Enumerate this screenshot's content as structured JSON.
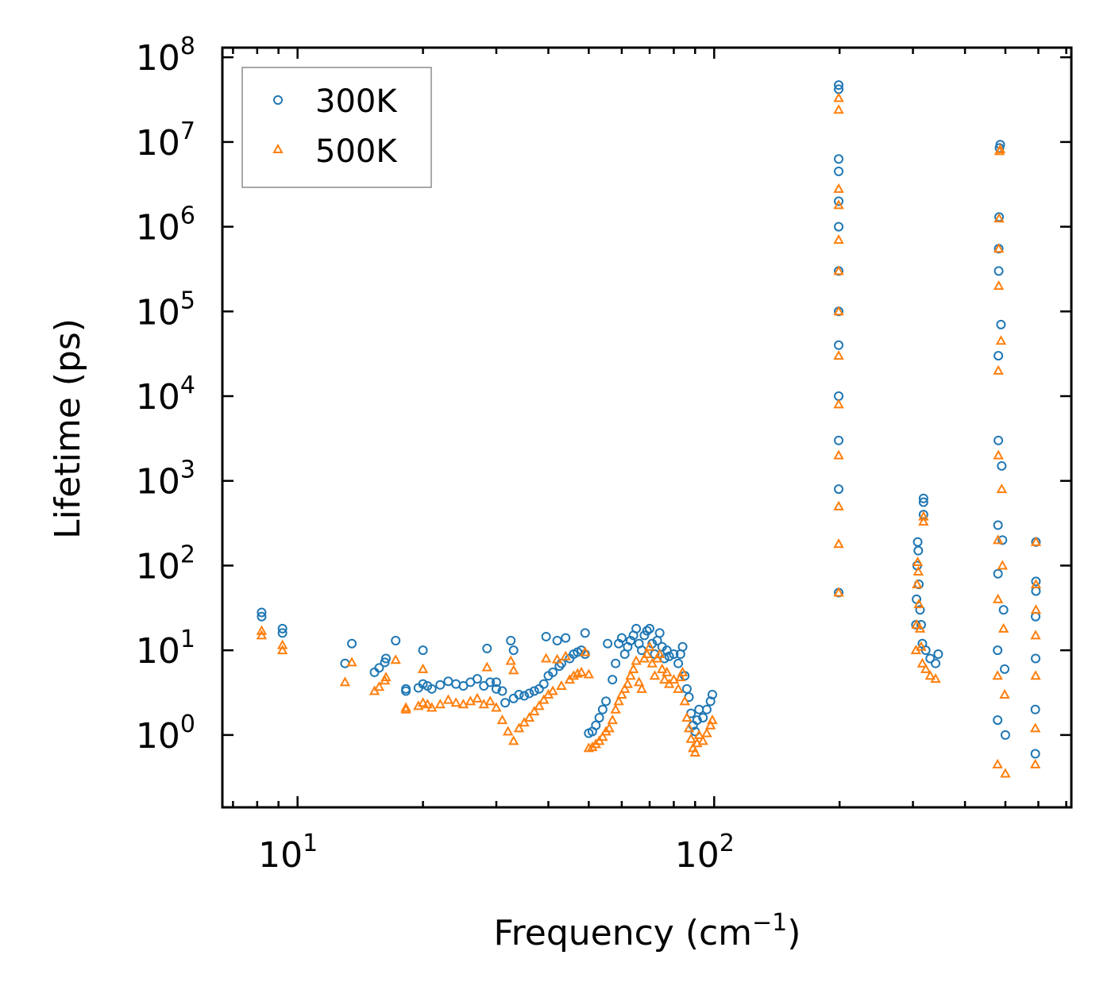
{
  "chart_data": {
    "type": "scatter",
    "title": "",
    "xlabel": "Frequency (cm",
    "xlabel_sup": "−1",
    "xlabel_close": ")",
    "ylabel": "Lifetime (ps)",
    "xscale": "log",
    "yscale": "log",
    "xlim": [
      6.6,
      720
    ],
    "ylim": [
      0.14,
      130000000
    ],
    "legend_position": "top-left",
    "x_ticks": [
      {
        "value": 10,
        "base": "10",
        "exp": "1"
      },
      {
        "value": 100,
        "base": "10",
        "exp": "2"
      }
    ],
    "y_ticks": [
      {
        "value": 1,
        "base": "10",
        "exp": "0"
      },
      {
        "value": 10,
        "base": "10",
        "exp": "1"
      },
      {
        "value": 100,
        "base": "10",
        "exp": "2"
      },
      {
        "value": 1000,
        "base": "10",
        "exp": "3"
      },
      {
        "value": 10000,
        "base": "10",
        "exp": "4"
      },
      {
        "value": 100000,
        "base": "10",
        "exp": "5"
      },
      {
        "value": 1000000,
        "base": "10",
        "exp": "6"
      },
      {
        "value": 10000000,
        "base": "10",
        "exp": "7"
      },
      {
        "value": 100000000,
        "base": "10",
        "exp": "8"
      }
    ],
    "series": [
      {
        "name": "300K",
        "marker": "circle",
        "color": "#1f77b4",
        "points": [
          [
            8.2,
            28
          ],
          [
            8.2,
            25
          ],
          [
            9.2,
            18
          ],
          [
            9.2,
            16
          ],
          [
            13,
            7
          ],
          [
            13.5,
            12
          ],
          [
            15.3,
            5.5
          ],
          [
            15.7,
            6.2
          ],
          [
            16.2,
            7.2
          ],
          [
            16.3,
            8
          ],
          [
            17.2,
            13
          ],
          [
            18.2,
            3.5
          ],
          [
            18.2,
            3.3
          ],
          [
            19.5,
            3.6
          ],
          [
            20,
            4
          ],
          [
            20,
            10
          ],
          [
            20.5,
            3.8
          ],
          [
            21,
            3.5
          ],
          [
            22,
            3.9
          ],
          [
            23,
            4.3
          ],
          [
            24,
            4
          ],
          [
            25,
            3.8
          ],
          [
            26,
            4.2
          ],
          [
            27,
            4.6
          ],
          [
            28,
            3.8
          ],
          [
            28.5,
            10.5
          ],
          [
            29,
            4.2
          ],
          [
            30,
            3.5
          ],
          [
            30,
            4.2
          ],
          [
            31,
            3.3
          ],
          [
            31.5,
            2.4
          ],
          [
            32.5,
            13
          ],
          [
            33,
            10
          ],
          [
            33,
            2.7
          ],
          [
            34,
            3
          ],
          [
            35,
            2.9
          ],
          [
            36,
            3.1
          ],
          [
            37,
            3.3
          ],
          [
            38,
            3.5
          ],
          [
            39,
            4
          ],
          [
            39.5,
            14.5
          ],
          [
            40,
            5
          ],
          [
            41,
            5.5
          ],
          [
            42,
            13
          ],
          [
            42.5,
            6.5
          ],
          [
            43,
            7
          ],
          [
            44,
            14
          ],
          [
            45,
            8
          ],
          [
            46,
            9
          ],
          [
            47,
            9.5
          ],
          [
            48,
            10
          ],
          [
            49,
            16
          ],
          [
            49,
            9
          ],
          [
            50,
            1.05
          ],
          [
            51,
            1.1
          ],
          [
            52,
            1.3
          ],
          [
            53,
            1.6
          ],
          [
            54,
            2
          ],
          [
            55,
            2.5
          ],
          [
            55.5,
            12
          ],
          [
            57,
            4.5
          ],
          [
            58,
            7
          ],
          [
            59,
            12
          ],
          [
            60,
            14
          ],
          [
            61,
            9
          ],
          [
            62,
            11
          ],
          [
            63,
            13
          ],
          [
            64,
            15
          ],
          [
            65,
            18
          ],
          [
            66,
            12
          ],
          [
            67,
            10
          ],
          [
            68,
            15
          ],
          [
            69,
            17
          ],
          [
            70,
            18
          ],
          [
            71,
            12
          ],
          [
            72,
            9
          ],
          [
            73,
            13
          ],
          [
            74,
            16
          ],
          [
            75,
            11
          ],
          [
            76,
            8
          ],
          [
            77,
            10
          ],
          [
            78,
            8.5
          ],
          [
            80,
            9
          ],
          [
            82,
            7
          ],
          [
            83,
            9
          ],
          [
            84,
            11
          ],
          [
            85,
            5
          ],
          [
            86,
            3.5
          ],
          [
            87,
            2.8
          ],
          [
            88,
            1.8
          ],
          [
            89,
            1.3
          ],
          [
            90,
            1.1
          ],
          [
            91,
            1.5
          ],
          [
            92,
            2
          ],
          [
            94,
            1.6
          ],
          [
            96,
            2
          ],
          [
            98,
            2.5
          ],
          [
            99,
            3
          ],
          [
            199,
            48
          ],
          [
            199,
            800
          ],
          [
            199,
            3000
          ],
          [
            199,
            10000
          ],
          [
            199,
            40000
          ],
          [
            199,
            100000
          ],
          [
            199,
            300000
          ],
          [
            199,
            1000000
          ],
          [
            199,
            2000000
          ],
          [
            199,
            4500000
          ],
          [
            199,
            6300000
          ],
          [
            199,
            42000000
          ],
          [
            199,
            47000000
          ],
          [
            305,
            20
          ],
          [
            306,
            40
          ],
          [
            307,
            100
          ],
          [
            308,
            190
          ],
          [
            309,
            150
          ],
          [
            310,
            60
          ],
          [
            312,
            30
          ],
          [
            314,
            20
          ],
          [
            316,
            12
          ],
          [
            318,
            620
          ],
          [
            318,
            560
          ],
          [
            318,
            400
          ],
          [
            322,
            10
          ],
          [
            330,
            8
          ],
          [
            340,
            7
          ],
          [
            345,
            9
          ],
          [
            479,
            1.5
          ],
          [
            479,
            10
          ],
          [
            480,
            80
          ],
          [
            480,
            300
          ],
          [
            481,
            3000
          ],
          [
            481,
            30000
          ],
          [
            482,
            300000
          ],
          [
            482,
            550000
          ],
          [
            483,
            1300000
          ],
          [
            484,
            8500000
          ],
          [
            486,
            9300000
          ],
          [
            488,
            70000
          ],
          [
            490,
            1500
          ],
          [
            492,
            200
          ],
          [
            495,
            30
          ],
          [
            498,
            6
          ],
          [
            500,
            1
          ],
          [
            590,
            0.6
          ],
          [
            590,
            2
          ],
          [
            591,
            8
          ],
          [
            591,
            25
          ],
          [
            592,
            50
          ],
          [
            592,
            65
          ],
          [
            592,
            190
          ]
        ]
      },
      {
        "name": "500K",
        "marker": "triangle",
        "color": "#ff7f0e",
        "points": [
          [
            8.2,
            17
          ],
          [
            8.2,
            15
          ],
          [
            9.2,
            11.5
          ],
          [
            9.2,
            10
          ],
          [
            13,
            4.2
          ],
          [
            13.5,
            7.2
          ],
          [
            15.3,
            3.3
          ],
          [
            15.7,
            3.7
          ],
          [
            16.2,
            4.4
          ],
          [
            16.3,
            4.8
          ],
          [
            17.2,
            7.7
          ],
          [
            18.2,
            2.1
          ],
          [
            18.2,
            2
          ],
          [
            19.5,
            2.2
          ],
          [
            20,
            2.4
          ],
          [
            20,
            6
          ],
          [
            20.5,
            2.3
          ],
          [
            21,
            2.1
          ],
          [
            22,
            2.3
          ],
          [
            23,
            2.6
          ],
          [
            24,
            2.4
          ],
          [
            25,
            2.3
          ],
          [
            26,
            2.5
          ],
          [
            27,
            2.7
          ],
          [
            28,
            2.3
          ],
          [
            28.5,
            6.3
          ],
          [
            29,
            2.5
          ],
          [
            30,
            2.1
          ],
          [
            31,
            1.5
          ],
          [
            32,
            1.1
          ],
          [
            32.5,
            7.5
          ],
          [
            33,
            5.8
          ],
          [
            33,
            0.85
          ],
          [
            34,
            1.2
          ],
          [
            35,
            1.4
          ],
          [
            36,
            1.6
          ],
          [
            37,
            1.9
          ],
          [
            38,
            2.2
          ],
          [
            39,
            2.6
          ],
          [
            39.5,
            8
          ],
          [
            40,
            3
          ],
          [
            41,
            3.3
          ],
          [
            42,
            7.8
          ],
          [
            43,
            3.8
          ],
          [
            44,
            8.5
          ],
          [
            45,
            4.5
          ],
          [
            46,
            5
          ],
          [
            47,
            5.3
          ],
          [
            48,
            5.5
          ],
          [
            49,
            9.5
          ],
          [
            50,
            5.2
          ],
          [
            50,
            0.7
          ],
          [
            51,
            0.72
          ],
          [
            52,
            0.78
          ],
          [
            53,
            0.85
          ],
          [
            54,
            0.95
          ],
          [
            55,
            1.1
          ],
          [
            56,
            1.2
          ],
          [
            57,
            1.5
          ],
          [
            58,
            2
          ],
          [
            59,
            2.5
          ],
          [
            60,
            3
          ],
          [
            61,
            3.5
          ],
          [
            62,
            4
          ],
          [
            63,
            5
          ],
          [
            64,
            6
          ],
          [
            65,
            7.5
          ],
          [
            66,
            4.2
          ],
          [
            67,
            3.5
          ],
          [
            68,
            8
          ],
          [
            69,
            9
          ],
          [
            70,
            11
          ],
          [
            71,
            7
          ],
          [
            72,
            5
          ],
          [
            73,
            8
          ],
          [
            74,
            9
          ],
          [
            75,
            6
          ],
          [
            76,
            4.5
          ],
          [
            77,
            5.5
          ],
          [
            78,
            4
          ],
          [
            80,
            4.5
          ],
          [
            82,
            3.5
          ],
          [
            83,
            4.8
          ],
          [
            84,
            5.5
          ],
          [
            85,
            2.5
          ],
          [
            86,
            1.6
          ],
          [
            87,
            1.2
          ],
          [
            88,
            0.9
          ],
          [
            89,
            0.7
          ],
          [
            90,
            0.62
          ],
          [
            91,
            0.8
          ],
          [
            92,
            1
          ],
          [
            94,
            0.85
          ],
          [
            96,
            1.05
          ],
          [
            98,
            1.3
          ],
          [
            99,
            1.5
          ],
          [
            199,
            48
          ],
          [
            199,
            180
          ],
          [
            199,
            500
          ],
          [
            199,
            2000
          ],
          [
            199,
            8000
          ],
          [
            199,
            30000
          ],
          [
            199,
            100000
          ],
          [
            199,
            300000
          ],
          [
            199,
            700000
          ],
          [
            199,
            1800000
          ],
          [
            199,
            2800000
          ],
          [
            199,
            24000000
          ],
          [
            199,
            33000000
          ],
          [
            305,
            10
          ],
          [
            306,
            20
          ],
          [
            307,
            60
          ],
          [
            308,
            110
          ],
          [
            309,
            85
          ],
          [
            310,
            35
          ],
          [
            312,
            18
          ],
          [
            314,
            11
          ],
          [
            316,
            7
          ],
          [
            318,
            380
          ],
          [
            318,
            330
          ],
          [
            322,
            6
          ],
          [
            330,
            5
          ],
          [
            340,
            4.6
          ],
          [
            479,
            0.45
          ],
          [
            479,
            5
          ],
          [
            480,
            40
          ],
          [
            480,
            200
          ],
          [
            481,
            2000
          ],
          [
            481,
            20000
          ],
          [
            482,
            200000
          ],
          [
            482,
            550000
          ],
          [
            483,
            1250000
          ],
          [
            484,
            7800000
          ],
          [
            486,
            8200000
          ],
          [
            488,
            45000
          ],
          [
            490,
            800
          ],
          [
            492,
            100
          ],
          [
            495,
            18
          ],
          [
            498,
            3
          ],
          [
            500,
            0.35
          ],
          [
            590,
            0.45
          ],
          [
            590,
            1.2
          ],
          [
            591,
            5
          ],
          [
            591,
            15
          ],
          [
            592,
            30
          ],
          [
            592,
            60
          ],
          [
            592,
            190
          ]
        ]
      }
    ]
  }
}
